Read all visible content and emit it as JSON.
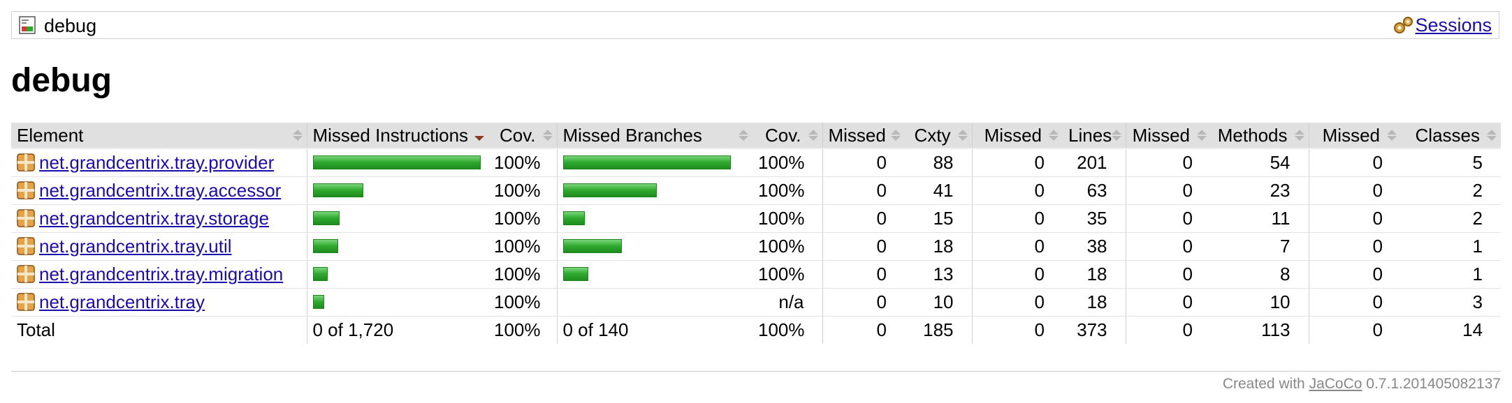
{
  "breadcrumb": {
    "title": "debug",
    "sessions_label": "Sessions"
  },
  "page": {
    "title": "debug"
  },
  "table": {
    "headers": {
      "element": "Element",
      "missed_instructions": "Missed Instructions",
      "instr_cov": "Cov.",
      "missed_branches": "Missed Branches",
      "branch_cov": "Cov.",
      "missed_cxty": "Missed",
      "cxty": "Cxty",
      "missed_lines": "Missed",
      "lines": "Lines",
      "missed_methods": "Missed",
      "methods": "Methods",
      "missed_classes": "Missed",
      "classes": "Classes"
    },
    "rows": [
      {
        "name": "net.grandcentrix.tray.provider",
        "instr_bar": 1.0,
        "instr_cov": "100%",
        "branch_bar": 1.0,
        "branch_cov": "100%",
        "missed_cxty": "0",
        "cxty": "88",
        "missed_lines": "0",
        "lines": "201",
        "missed_methods": "0",
        "methods": "54",
        "missed_classes": "0",
        "classes": "5"
      },
      {
        "name": "net.grandcentrix.tray.accessor",
        "instr_bar": 0.3,
        "instr_cov": "100%",
        "branch_bar": 0.56,
        "branch_cov": "100%",
        "missed_cxty": "0",
        "cxty": "41",
        "missed_lines": "0",
        "lines": "63",
        "missed_methods": "0",
        "methods": "23",
        "missed_classes": "0",
        "classes": "2"
      },
      {
        "name": "net.grandcentrix.tray.storage",
        "instr_bar": 0.16,
        "instr_cov": "100%",
        "branch_bar": 0.13,
        "branch_cov": "100%",
        "missed_cxty": "0",
        "cxty": "15",
        "missed_lines": "0",
        "lines": "35",
        "missed_methods": "0",
        "methods": "11",
        "missed_classes": "0",
        "classes": "2"
      },
      {
        "name": "net.grandcentrix.tray.util",
        "instr_bar": 0.15,
        "instr_cov": "100%",
        "branch_bar": 0.35,
        "branch_cov": "100%",
        "missed_cxty": "0",
        "cxty": "18",
        "missed_lines": "0",
        "lines": "38",
        "missed_methods": "0",
        "methods": "7",
        "missed_classes": "0",
        "classes": "1"
      },
      {
        "name": "net.grandcentrix.tray.migration",
        "instr_bar": 0.09,
        "instr_cov": "100%",
        "branch_bar": 0.15,
        "branch_cov": "100%",
        "missed_cxty": "0",
        "cxty": "13",
        "missed_lines": "0",
        "lines": "18",
        "missed_methods": "0",
        "methods": "8",
        "missed_classes": "0",
        "classes": "1"
      },
      {
        "name": "net.grandcentrix.tray",
        "instr_bar": 0.07,
        "instr_cov": "100%",
        "branch_bar": 0,
        "branch_cov": "n/a",
        "missed_cxty": "0",
        "cxty": "10",
        "missed_lines": "0",
        "lines": "18",
        "missed_methods": "0",
        "methods": "10",
        "missed_classes": "0",
        "classes": "3"
      }
    ],
    "total": {
      "label": "Total",
      "missed_instructions": "0 of 1,720",
      "instr_cov": "100%",
      "missed_branches": "0 of 140",
      "branch_cov": "100%",
      "missed_cxty": "0",
      "cxty": "185",
      "missed_lines": "0",
      "lines": "373",
      "missed_methods": "0",
      "methods": "113",
      "missed_classes": "0",
      "classes": "14"
    }
  },
  "footer": {
    "prefix": "Created with",
    "link": "JaCoCo",
    "version": "0.7.1.201405082137"
  },
  "colors": {
    "bar_green": "#2ea82e",
    "link": "#1a0dab",
    "header_bg": "#e0e0e0"
  },
  "icons": {
    "report": "report-icon",
    "sessions": "sessions-icon",
    "package": "package-icon",
    "sort": "sort-icon"
  }
}
